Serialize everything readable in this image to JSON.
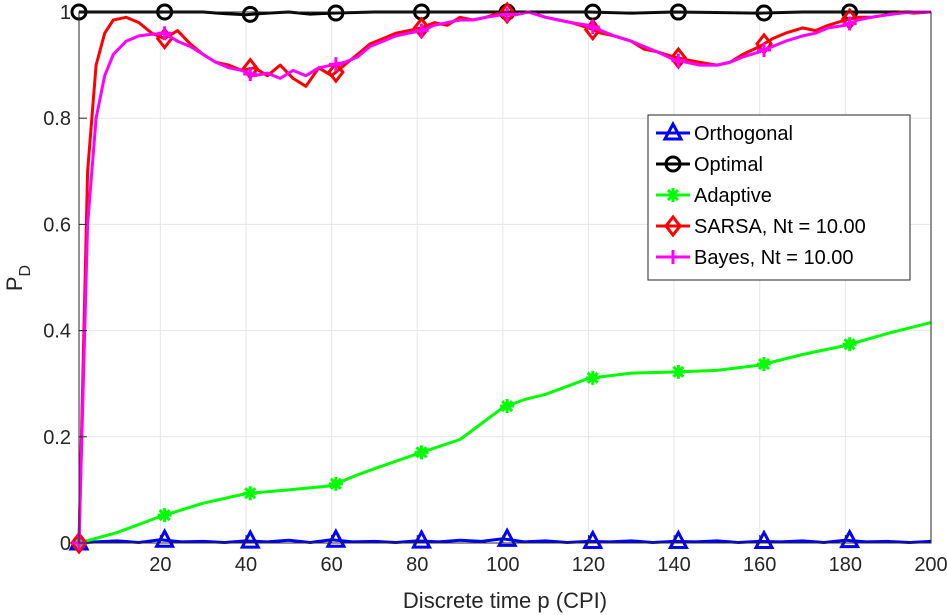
{
  "chart_data": {
    "type": "line",
    "title": "",
    "xlabel": "Discrete time p (CPI)",
    "ylabel": "P",
    "ylabel_subscript": "D",
    "xlim": [
      1,
      200
    ],
    "ylim": [
      0,
      1
    ],
    "xticks": [
      20,
      40,
      60,
      80,
      100,
      120,
      140,
      160,
      180,
      200
    ],
    "xtick_labels": [
      "20",
      "40",
      "60",
      "80",
      "100",
      "120",
      "140",
      "160",
      "180",
      "200"
    ],
    "yticks": [
      0,
      0.2,
      0.4,
      0.6,
      0.8,
      1
    ],
    "ytick_labels": [
      "0",
      "0.2",
      "0.4",
      "0.6",
      "0.8",
      "1"
    ],
    "grid": true,
    "legend_position": "right",
    "marker_x": [
      1,
      21,
      41,
      61,
      81,
      101,
      121,
      141,
      161,
      181
    ],
    "series": [
      {
        "name": "Orthogonal",
        "color": "#0000ff",
        "marker": "triangle",
        "x": [
          1,
          5,
          10,
          15,
          20,
          25,
          30,
          35,
          40,
          45,
          50,
          55,
          60,
          65,
          70,
          75,
          80,
          85,
          90,
          95,
          100,
          105,
          110,
          115,
          120,
          125,
          130,
          135,
          140,
          145,
          150,
          155,
          160,
          165,
          170,
          175,
          180,
          185,
          190,
          195,
          200
        ],
        "y": [
          0,
          0.002,
          0.004,
          0.001,
          0.006,
          0.002,
          0.003,
          0.001,
          0.004,
          0.002,
          0.005,
          0.001,
          0.006,
          0.002,
          0.003,
          0.001,
          0.004,
          0.002,
          0.005,
          0.003,
          0.008,
          0.002,
          0.004,
          0.001,
          0.003,
          0.002,
          0.004,
          0.001,
          0.003,
          0.002,
          0.004,
          0.001,
          0.003,
          0.002,
          0.004,
          0.001,
          0.005,
          0.002,
          0.003,
          0.001,
          0.003
        ]
      },
      {
        "name": "Optimal",
        "color": "#000000",
        "marker": "circle",
        "x": [
          1,
          10,
          20,
          30,
          35,
          40,
          45,
          50,
          55,
          60,
          70,
          80,
          90,
          100,
          110,
          120,
          130,
          140,
          150,
          160,
          170,
          180,
          190,
          200
        ],
        "y": [
          1,
          1,
          1,
          1,
          0.997,
          0.995,
          0.998,
          1,
          0.996,
          0.998,
          1,
          1,
          1,
          1,
          1,
          1,
          0.998,
          1,
          0.999,
          0.998,
          1,
          1,
          1,
          1
        ]
      },
      {
        "name": "Adaptive",
        "color": "#00ff00",
        "marker": "asterisk",
        "x": [
          1,
          10,
          20,
          30,
          40,
          50,
          60,
          65,
          70,
          80,
          90,
          95,
          100,
          105,
          110,
          120,
          130,
          140,
          150,
          160,
          170,
          180,
          190,
          200
        ],
        "y": [
          0,
          0.02,
          0.05,
          0.075,
          0.093,
          0.1,
          0.108,
          0.125,
          0.14,
          0.168,
          0.195,
          0.225,
          0.255,
          0.27,
          0.28,
          0.31,
          0.32,
          0.322,
          0.325,
          0.335,
          0.355,
          0.372,
          0.395,
          0.415
        ]
      },
      {
        "name": "SARSA, Nt = 10.00",
        "color": "#ff0000",
        "marker": "diamond",
        "x": [
          1,
          3,
          5,
          7,
          9,
          12,
          15,
          18,
          21,
          24,
          27,
          30,
          33,
          36,
          39,
          42,
          45,
          48,
          51,
          54,
          57,
          60,
          63,
          66,
          69,
          72,
          75,
          78,
          81,
          84,
          87,
          90,
          93,
          96,
          100,
          103,
          106,
          110,
          113,
          116,
          120,
          123,
          126,
          130,
          133,
          136,
          140,
          143,
          146,
          150,
          153,
          156,
          160,
          163,
          166,
          170,
          173,
          176,
          180,
          183,
          186,
          190,
          193,
          196,
          200
        ],
        "y": [
          0,
          0.7,
          0.9,
          0.96,
          0.985,
          0.99,
          0.98,
          0.96,
          0.95,
          0.965,
          0.94,
          0.92,
          0.905,
          0.9,
          0.89,
          0.895,
          0.88,
          0.9,
          0.875,
          0.86,
          0.895,
          0.88,
          0.9,
          0.92,
          0.94,
          0.95,
          0.96,
          0.965,
          0.97,
          0.98,
          0.975,
          0.99,
          0.985,
          0.99,
          1,
          0.995,
          1,
          0.99,
          0.985,
          0.98,
          0.97,
          0.96,
          0.955,
          0.945,
          0.93,
          0.925,
          0.915,
          0.91,
          0.905,
          0.9,
          0.905,
          0.92,
          0.935,
          0.95,
          0.96,
          0.97,
          0.965,
          0.975,
          0.985,
          0.99,
          0.99,
          0.995,
          1,
          0.998,
          1
        ]
      },
      {
        "name": "Bayes, Nt = 10.00",
        "color": "#ff00ff",
        "marker": "plus",
        "x": [
          1,
          3,
          5,
          7,
          9,
          12,
          15,
          18,
          21,
          24,
          27,
          30,
          33,
          36,
          39,
          42,
          45,
          48,
          51,
          54,
          57,
          60,
          63,
          66,
          69,
          72,
          75,
          78,
          81,
          84,
          87,
          90,
          93,
          96,
          100,
          103,
          106,
          110,
          113,
          116,
          120,
          123,
          126,
          130,
          133,
          136,
          140,
          143,
          146,
          150,
          153,
          156,
          160,
          163,
          166,
          170,
          173,
          176,
          180,
          183,
          186,
          190,
          193,
          196,
          200
        ],
        "y": [
          0,
          0.6,
          0.8,
          0.88,
          0.92,
          0.945,
          0.955,
          0.958,
          0.96,
          0.945,
          0.935,
          0.92,
          0.905,
          0.895,
          0.89,
          0.88,
          0.885,
          0.875,
          0.89,
          0.88,
          0.895,
          0.9,
          0.905,
          0.915,
          0.935,
          0.945,
          0.955,
          0.96,
          0.965,
          0.975,
          0.98,
          0.985,
          0.985,
          0.99,
          0.995,
          0.995,
          1,
          0.99,
          0.985,
          0.98,
          0.975,
          0.965,
          0.955,
          0.945,
          0.935,
          0.925,
          0.91,
          0.905,
          0.9,
          0.9,
          0.905,
          0.915,
          0.925,
          0.935,
          0.945,
          0.955,
          0.96,
          0.97,
          0.975,
          0.985,
          0.99,
          0.995,
          0.998,
          1,
          1
        ]
      }
    ]
  }
}
